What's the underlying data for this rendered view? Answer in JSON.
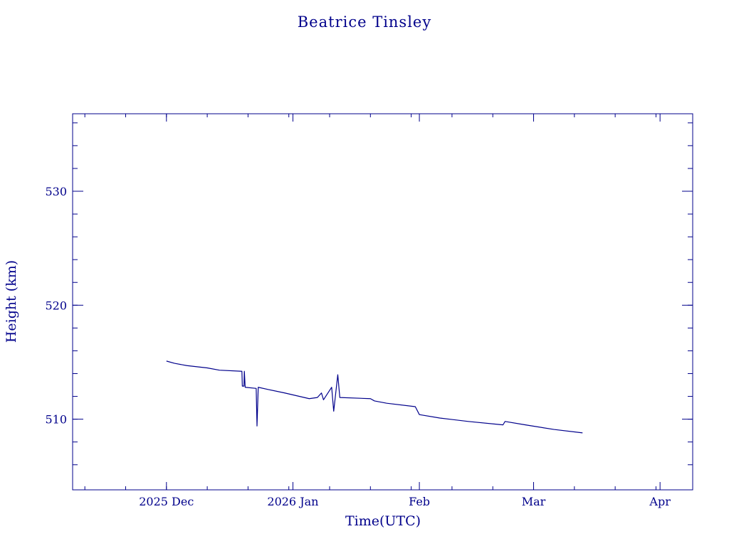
{
  "chart_data": {
    "type": "line",
    "title": "Beatrice Tinsley",
    "xlabel": "Time(UTC)",
    "ylabel": "Height (km)",
    "color": "#00008b",
    "x_axis": {
      "range": [
        "2025-11-08",
        "2026-04-09"
      ],
      "tick_labels": [
        {
          "date": "2025-12-01",
          "label": "2025 Dec"
        },
        {
          "date": "2026-01-01",
          "label": "2026 Jan"
        },
        {
          "date": "2026-02-01",
          "label": "Feb"
        },
        {
          "date": "2026-03-01",
          "label": "Mar"
        },
        {
          "date": "2026-04-01",
          "label": "Apr"
        }
      ]
    },
    "y_axis": {
      "range": [
        503.8,
        536.8
      ],
      "tick_labels": [
        {
          "value": 510,
          "label": "510"
        },
        {
          "value": 520,
          "label": "520"
        },
        {
          "value": 530,
          "label": "530"
        }
      ]
    },
    "grid": false,
    "series": [
      {
        "points": [
          [
            "2025-12-01",
            515.1
          ],
          [
            "2025-12-03",
            514.9
          ],
          [
            "2025-12-06",
            514.7
          ],
          [
            "2025-12-11",
            514.5
          ],
          [
            "2025-12-14",
            514.3
          ],
          [
            "2025-12-19.5",
            514.2
          ],
          [
            "2025-12-19.6",
            512.9
          ],
          [
            "2025-12-20.0",
            512.9
          ],
          [
            "2025-12-20.1",
            514.2
          ],
          [
            "2025-12-20.3",
            512.8
          ],
          [
            "2025-12-23.0",
            512.7
          ],
          [
            "2025-12-23.2",
            509.4
          ],
          [
            "2025-12-23.5",
            512.8
          ],
          [
            "2025-12-26",
            512.6
          ],
          [
            "2025-12-30",
            512.3
          ],
          [
            "2026-01-05",
            511.8
          ],
          [
            "2026-01-07",
            511.9
          ],
          [
            "2026-01-08",
            512.3
          ],
          [
            "2026-01-08.5",
            511.7
          ],
          [
            "2026-01-10.5",
            512.8
          ],
          [
            "2026-01-11.0",
            510.7
          ],
          [
            "2026-01-12.0",
            513.9
          ],
          [
            "2026-01-12.5",
            511.9
          ],
          [
            "2026-01-20",
            511.8
          ],
          [
            "2026-01-21",
            511.6
          ],
          [
            "2026-01-24",
            511.4
          ],
          [
            "2026-01-31",
            511.1
          ],
          [
            "2026-02-01",
            510.4
          ],
          [
            "2026-02-06",
            510.1
          ],
          [
            "2026-02-13",
            509.8
          ],
          [
            "2026-02-21.5",
            509.5
          ],
          [
            "2026-02-22",
            509.8
          ],
          [
            "2026-02-27",
            509.5
          ],
          [
            "2026-03-06",
            509.1
          ],
          [
            "2026-03-13",
            508.8
          ]
        ]
      }
    ]
  }
}
